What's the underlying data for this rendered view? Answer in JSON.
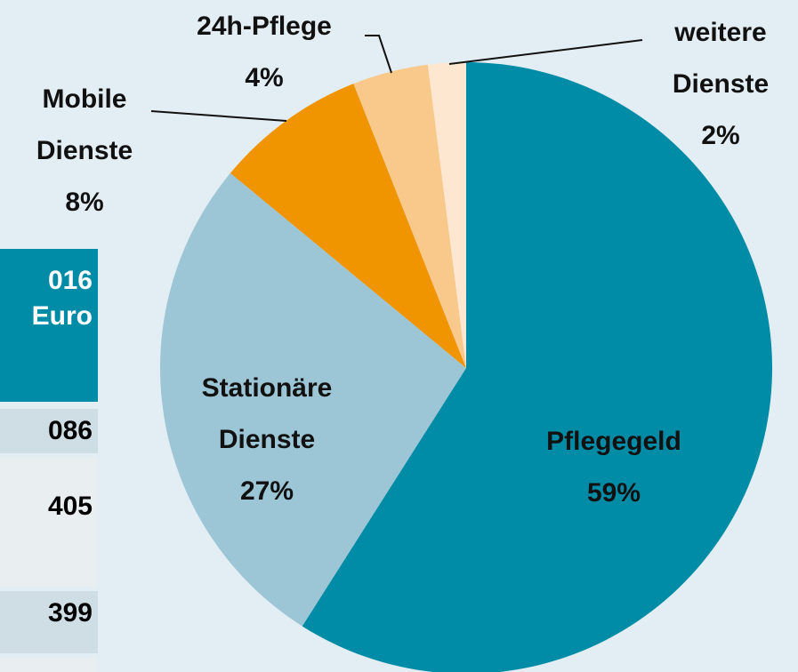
{
  "chart_data": {
    "type": "pie",
    "categories": [
      "Pflegegeld",
      "Stationäre Dienste",
      "Mobile Dienste",
      "24h-Pflege",
      "weitere Dienste"
    ],
    "values": [
      59,
      27,
      8,
      4,
      2
    ],
    "value_labels": [
      "59%",
      "27%",
      "8%",
      "4%",
      "2%"
    ],
    "colors": [
      "#008ca6",
      "#9cc5d5",
      "#f09400",
      "#f9c98b",
      "#fde7d1"
    ]
  },
  "table": {
    "header": [
      "016",
      "Euro"
    ],
    "rows": [
      "086",
      "405",
      "399"
    ]
  }
}
